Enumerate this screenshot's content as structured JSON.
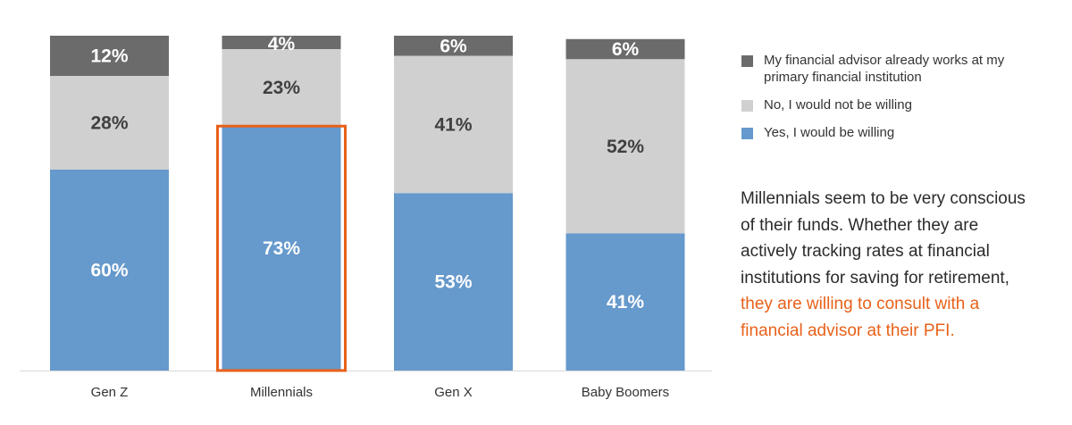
{
  "chart_data": {
    "type": "bar",
    "stacked": true,
    "categories": [
      "Gen Z",
      "Millennials",
      "Gen X",
      "Baby Boomers"
    ],
    "series": [
      {
        "name": "Yes, I would be willing",
        "color": "#6699cc",
        "values": [
          60,
          73,
          53,
          41
        ]
      },
      {
        "name": "No, I would not be willing",
        "color": "#d0d0d0",
        "values": [
          28,
          23,
          41,
          52
        ]
      },
      {
        "name": "My financial advisor already works at my primary financial institution",
        "color": "#6b6b6b",
        "values": [
          12,
          4,
          6,
          6
        ]
      }
    ],
    "data_labels": [
      [
        "60%",
        "73%",
        "53%",
        "41%"
      ],
      [
        "28%",
        "23%",
        "41%",
        "52%"
      ],
      [
        "12%",
        "4%",
        "6%",
        "6%"
      ]
    ],
    "ylim": [
      0,
      100
    ],
    "highlight_category": "Millennials",
    "highlight_color": "#e8611a",
    "legend_position": "right",
    "grid": false
  },
  "legend": [
    {
      "label": "My financial advisor already works at my primary financial institution",
      "color": "#6b6b6b"
    },
    {
      "label": "No, I would not be willing",
      "color": "#d0d0d0"
    },
    {
      "label": "Yes, I would be willing",
      "color": "#6699cc"
    }
  ],
  "callout": {
    "text_plain": "Millennials seem to be very conscious of their funds. Whether they are actively tracking rates at financial institutions for saving for retirement, ",
    "text_highlight": "they are willing to consult with a financial advisor at their PFI."
  }
}
